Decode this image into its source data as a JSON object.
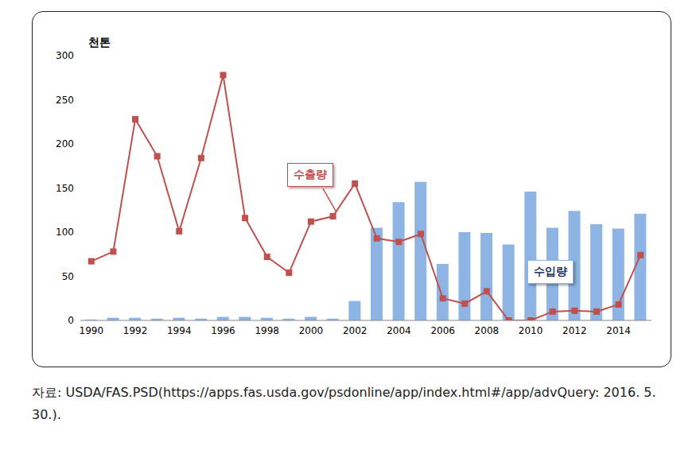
{
  "chart_data": {
    "type": "bar_line",
    "y_label": "천톤",
    "source": "자료: USDA/FAS.PSD(https://apps.fas.usda.gov/psdonline/app/index.html#/app/advQuery: 2016. 5. 30.).",
    "categories": [
      "1990",
      null,
      "1992",
      null,
      "1994",
      null,
      "1996",
      null,
      "1998",
      null,
      "2000",
      null,
      "2002",
      null,
      "2004",
      null,
      "2006",
      null,
      "2008",
      null,
      "2010",
      null,
      "2012",
      null,
      "2014",
      null
    ],
    "series": [
      {
        "name": "수입량",
        "type": "bar",
        "color": "#8eb4e3",
        "values": [
          1,
          3,
          3,
          2,
          3,
          2,
          4,
          4,
          3,
          2,
          4,
          2,
          22,
          105,
          134,
          157,
          64,
          100,
          99,
          86,
          146,
          105,
          124,
          109,
          104,
          121
        ]
      },
      {
        "name": "수출량",
        "type": "line",
        "color": "#c0504d",
        "marker": "square",
        "values": [
          67,
          78,
          228,
          186,
          101,
          184,
          278,
          116,
          72,
          54,
          112,
          118,
          155,
          93,
          89,
          98,
          25,
          19,
          33,
          0,
          0,
          10,
          11,
          10,
          18,
          74
        ]
      }
    ],
    "ylim": [
      0,
      300
    ],
    "yticks": [
      0,
      50,
      100,
      150,
      200,
      250,
      300
    ],
    "grid": false
  }
}
